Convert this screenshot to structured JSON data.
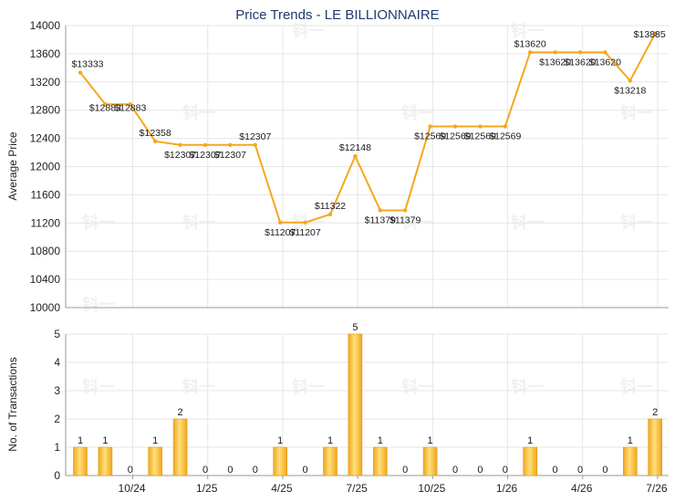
{
  "chart_data": [
    {
      "type": "line",
      "title": "Price Trends - LE BILLIONNAIRE",
      "ylabel": "Average Price",
      "ylim": [
        10000,
        14000
      ],
      "yticks": [
        10000,
        10400,
        10800,
        11200,
        11600,
        12000,
        12400,
        12800,
        13200,
        13600,
        14000
      ],
      "x_tick_labels": [
        "10/24",
        "1/25",
        "4/25",
        "7/25",
        "10/25",
        "1/26",
        "4/26",
        "7/26"
      ],
      "grid": true,
      "series": [
        {
          "color": "#f5a81c",
          "values": [
            13333,
            12883,
            12883,
            12358,
            12307,
            12307,
            12307,
            12307,
            11207,
            11207,
            11322,
            12148,
            11379,
            11379,
            12569,
            12569,
            12569,
            12569,
            13620,
            13620,
            13620,
            13620,
            13218,
            13885
          ],
          "labels": [
            "$13333",
            "$12883",
            "$12883",
            "$12358",
            "$12307",
            "$12307",
            "$12307",
            "$12307",
            "$11207",
            "$11207",
            "$11322",
            "$12148",
            "$11379",
            "$11379",
            "$12569",
            "$12569",
            "$12569",
            "$12569",
            "$13620",
            "$13620",
            "$13620",
            "$13620",
            "$13218",
            "$13885"
          ]
        }
      ]
    },
    {
      "type": "bar",
      "ylabel": "No. of Transactions",
      "ylim": [
        0,
        5
      ],
      "yticks": [
        0,
        1,
        2,
        3,
        4,
        5
      ],
      "x_tick_labels": [
        "10/24",
        "1/25",
        "4/25",
        "7/25",
        "10/25",
        "1/26",
        "4/26",
        "7/26"
      ],
      "grid": true,
      "series": [
        {
          "color": "#f5a81c",
          "values": [
            1,
            1,
            0,
            1,
            2,
            0,
            0,
            0,
            1,
            0,
            1,
            5,
            1,
            0,
            1,
            0,
            0,
            0,
            1,
            0,
            0,
            0,
            1,
            2
          ]
        }
      ]
    }
  ],
  "watermark": "钭一"
}
